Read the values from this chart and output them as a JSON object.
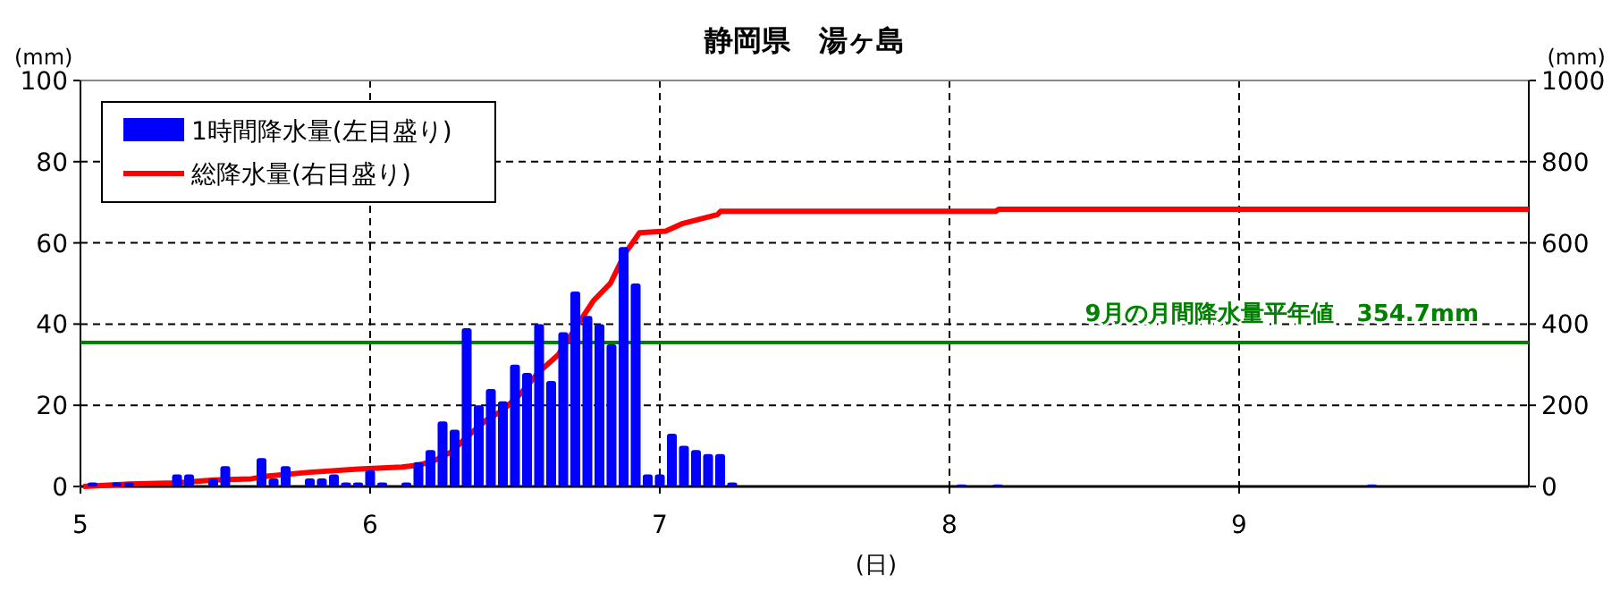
{
  "chart_data": {
    "type": "bar",
    "title": "静岡県　湯ヶ島",
    "xlabel": "(日)",
    "ylabel": "(mm)",
    "y2label": "(mm)",
    "xlim": [
      5,
      10
    ],
    "xticks": [
      5,
      6,
      7,
      8,
      9
    ],
    "ylim": [
      0,
      100
    ],
    "yticks": [
      0,
      20,
      40,
      60,
      80,
      100
    ],
    "y2lim": [
      0,
      1000
    ],
    "y2ticks": [
      0,
      200,
      400,
      600,
      800,
      1000
    ],
    "grid": true,
    "legend": "top left",
    "ref_lines": [
      {
        "axis": "y2",
        "value": 354.7,
        "label": "9月の月間降水量平年値　354.7mm",
        "color": "#008000"
      }
    ],
    "series": [
      {
        "name": "1時間降水量(左目盛り)",
        "color": "#0000ff",
        "x": [
          5.0417,
          5.125,
          5.1667,
          5.3333,
          5.375,
          5.4583,
          5.5,
          5.625,
          5.6667,
          5.7083,
          5.7917,
          5.8333,
          5.875,
          5.9167,
          5.9583,
          6.0,
          6.0417,
          6.125,
          6.1667,
          6.2083,
          6.25,
          6.2917,
          6.3333,
          6.375,
          6.4167,
          6.4583,
          6.5,
          6.5417,
          6.5833,
          6.625,
          6.6667,
          6.7083,
          6.75,
          6.7917,
          6.8333,
          6.875,
          6.9167,
          6.9583,
          7.0,
          7.0417,
          7.0833,
          7.125,
          7.1667,
          7.2083,
          7.25,
          8.0417,
          8.1667,
          9.4583
        ],
        "values": [
          1,
          1,
          1,
          3,
          3,
          2,
          5,
          7,
          2,
          5,
          2,
          2,
          3,
          1,
          1,
          4,
          1,
          1,
          6,
          9,
          16,
          14,
          39,
          20,
          24,
          21,
          30,
          28,
          40,
          26,
          38,
          48,
          42,
          40,
          35,
          59,
          50,
          3,
          3,
          13,
          10,
          9,
          8,
          8,
          1,
          0.5,
          0.5,
          0.5
        ]
      },
      {
        "name": "総降水量(右目盛り)",
        "type": "line",
        "axis": "y2",
        "color": "#ff0000",
        "x": [
          5.01,
          5.17,
          5.33,
          5.46,
          5.59,
          5.65,
          5.79,
          5.96,
          6.11,
          6.17,
          6.22,
          6.28,
          6.34,
          6.4,
          6.46,
          6.52,
          6.58,
          6.65,
          6.71,
          6.77,
          6.83,
          6.88,
          6.93,
          7.02,
          7.08,
          7.2,
          7.21,
          8.16,
          8.17,
          10.0
        ],
        "values": [
          0,
          6,
          9,
          16,
          19,
          26,
          35,
          43,
          48,
          53,
          63,
          85,
          126,
          163,
          189,
          229,
          280,
          325,
          391,
          457,
          501,
          574,
          625,
          629,
          648,
          670,
          678,
          678,
          683,
          683
        ]
      }
    ]
  }
}
